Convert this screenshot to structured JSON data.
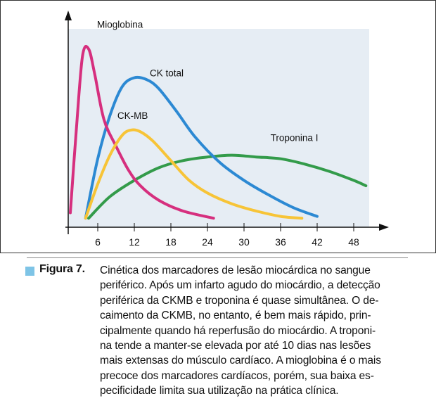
{
  "chart_data": {
    "type": "line",
    "title": "",
    "xlabel": "",
    "ylabel": "",
    "x_ticks": [
      6,
      12,
      18,
      24,
      30,
      36,
      42,
      48
    ],
    "xlim": [
      0.5,
      51
    ],
    "ylim": [
      0,
      100
    ],
    "grid": false,
    "colors": {
      "plot_background": "#e6edf4",
      "axis": "#111111"
    },
    "series": [
      {
        "name": "Mioglobina",
        "color": "#d62f7e",
        "points": [
          [
            1.5,
            8
          ],
          [
            2.5,
            55
          ],
          [
            3.5,
            95
          ],
          [
            4.5,
            99
          ],
          [
            5.5,
            85
          ],
          [
            7,
            60
          ],
          [
            9,
            45
          ],
          [
            11,
            32
          ],
          [
            13,
            23
          ],
          [
            16,
            15
          ],
          [
            20,
            9
          ],
          [
            25,
            5
          ]
        ]
      },
      {
        "name": "CK total",
        "color": "#2c89d3",
        "points": [
          [
            4,
            5
          ],
          [
            6,
            38
          ],
          [
            8,
            62
          ],
          [
            10,
            78
          ],
          [
            12,
            83
          ],
          [
            14,
            82
          ],
          [
            16,
            77
          ],
          [
            19,
            64
          ],
          [
            22,
            50
          ],
          [
            26,
            36
          ],
          [
            30,
            26
          ],
          [
            34,
            18
          ],
          [
            38,
            11
          ],
          [
            42,
            6
          ]
        ]
      },
      {
        "name": "CK-MB",
        "color": "#f7c437",
        "points": [
          [
            4,
            5
          ],
          [
            6,
            24
          ],
          [
            8,
            40
          ],
          [
            10,
            51
          ],
          [
            11.5,
            54
          ],
          [
            13,
            53
          ],
          [
            15,
            48
          ],
          [
            18,
            37
          ],
          [
            21,
            26
          ],
          [
            24,
            19
          ],
          [
            28,
            13
          ],
          [
            32,
            9
          ],
          [
            36,
            6
          ],
          [
            39.5,
            5
          ]
        ]
      },
      {
        "name": "Troponina I",
        "color": "#339b4a",
        "points": [
          [
            4.5,
            5
          ],
          [
            8,
            17
          ],
          [
            12,
            26
          ],
          [
            16,
            33
          ],
          [
            20,
            37
          ],
          [
            24,
            39
          ],
          [
            28,
            40
          ],
          [
            32,
            39
          ],
          [
            36,
            38
          ],
          [
            40,
            35
          ],
          [
            44,
            31
          ],
          [
            48,
            26
          ],
          [
            50,
            23
          ]
        ]
      }
    ],
    "annotations": [
      "Mioglobina",
      "CK total",
      "CK-MB",
      "Troponina I"
    ]
  },
  "caption": {
    "label": "Figura 7.",
    "marker_color": "#7ec4e6",
    "lines": [
      "Cinética dos marcadores de lesão miocárdica no sangue",
      "periférico. Após um infarto agudo do miocárdio, a detecção",
      "periférica da CKMB e troponina é quase simultânea. O de-",
      "caimento da CKMB, no entanto, é bem mais rápido, prin-",
      "cipalmente quando há reperfusão do miocárdio. A troponi-",
      "na tende a manter-se elevada por até 10 dias nas lesões",
      "mais extensas do músculo cardíaco. A mioglobina é o mais",
      "precoce dos marcadores cardíacos, porém, sua baixa es-",
      "pecificidade limita sua utilização na prática clínica."
    ]
  }
}
